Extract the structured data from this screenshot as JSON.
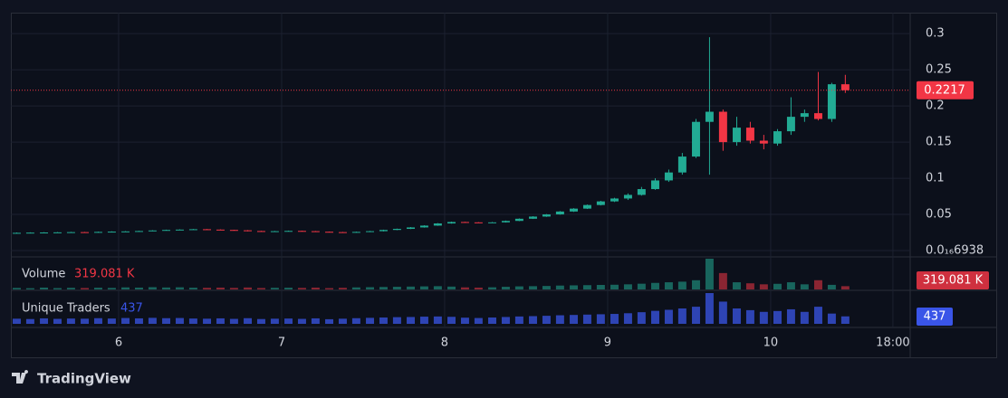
{
  "chart_data": {
    "type": "candlestick",
    "x": [
      5.375,
      5.458,
      5.542,
      5.625,
      5.708,
      5.792,
      5.875,
      5.958,
      6.042,
      6.125,
      6.208,
      6.292,
      6.375,
      6.458,
      6.542,
      6.625,
      6.708,
      6.792,
      6.875,
      6.958,
      7.042,
      7.125,
      7.208,
      7.292,
      7.375,
      7.458,
      7.542,
      7.625,
      7.708,
      7.792,
      7.875,
      7.958,
      8.042,
      8.125,
      8.208,
      8.292,
      8.375,
      8.458,
      8.542,
      8.625,
      8.708,
      8.792,
      8.875,
      8.958,
      9.042,
      9.125,
      9.208,
      9.292,
      9.375,
      9.458,
      9.542,
      9.625,
      9.708,
      9.792,
      9.875,
      9.958,
      10.042,
      10.125,
      10.208,
      10.292,
      10.375,
      10.458
    ],
    "open": [
      0.0243,
      0.0245,
      0.0248,
      0.025,
      0.0252,
      0.0255,
      0.025,
      0.0258,
      0.0262,
      0.0265,
      0.027,
      0.0278,
      0.0285,
      0.029,
      0.0295,
      0.029,
      0.0285,
      0.028,
      0.027,
      0.0265,
      0.0268,
      0.0272,
      0.0268,
      0.026,
      0.0255,
      0.0252,
      0.0258,
      0.0268,
      0.0285,
      0.03,
      0.032,
      0.0345,
      0.0375,
      0.0395,
      0.039,
      0.0385,
      0.039,
      0.041,
      0.044,
      0.047,
      0.05,
      0.054,
      0.058,
      0.063,
      0.068,
      0.072,
      0.077,
      0.085,
      0.097,
      0.108,
      0.13,
      0.178,
      0.192,
      0.15,
      0.17,
      0.152,
      0.148,
      0.165,
      0.185,
      0.19,
      0.182,
      0.23
    ],
    "high": [
      0.025,
      0.0252,
      0.0254,
      0.0256,
      0.0259,
      0.0258,
      0.0262,
      0.0266,
      0.0269,
      0.0274,
      0.0282,
      0.0289,
      0.0294,
      0.0299,
      0.0298,
      0.0293,
      0.0288,
      0.0283,
      0.0273,
      0.0272,
      0.0276,
      0.0275,
      0.0271,
      0.0263,
      0.0258,
      0.0262,
      0.0272,
      0.0289,
      0.0304,
      0.0325,
      0.035,
      0.038,
      0.04,
      0.0398,
      0.0393,
      0.0395,
      0.0415,
      0.0445,
      0.0475,
      0.0505,
      0.0546,
      0.0586,
      0.0637,
      0.0688,
      0.073,
      0.079,
      0.088,
      0.1,
      0.112,
      0.135,
      0.182,
      0.295,
      0.195,
      0.185,
      0.178,
      0.16,
      0.168,
      0.212,
      0.195,
      0.247,
      0.232,
      0.243
    ],
    "low": [
      0.024,
      0.0242,
      0.0245,
      0.0247,
      0.0249,
      0.0246,
      0.0248,
      0.0255,
      0.0259,
      0.0262,
      0.0267,
      0.0275,
      0.0282,
      0.0287,
      0.0286,
      0.0281,
      0.0276,
      0.0266,
      0.0261,
      0.0262,
      0.0265,
      0.0264,
      0.0256,
      0.0251,
      0.0248,
      0.0249,
      0.0255,
      0.0265,
      0.0282,
      0.0297,
      0.0317,
      0.0342,
      0.0372,
      0.0386,
      0.0381,
      0.0382,
      0.0387,
      0.0407,
      0.0437,
      0.0466,
      0.0496,
      0.0535,
      0.0575,
      0.0624,
      0.0672,
      0.07,
      0.076,
      0.084,
      0.095,
      0.105,
      0.128,
      0.105,
      0.138,
      0.145,
      0.148,
      0.14,
      0.145,
      0.16,
      0.178,
      0.18,
      0.178,
      0.218
    ],
    "close": [
      0.0245,
      0.0248,
      0.025,
      0.0252,
      0.0255,
      0.025,
      0.0258,
      0.0262,
      0.0265,
      0.027,
      0.0278,
      0.0285,
      0.029,
      0.0295,
      0.029,
      0.0285,
      0.028,
      0.027,
      0.0265,
      0.0268,
      0.0272,
      0.0268,
      0.026,
      0.0255,
      0.0252,
      0.0258,
      0.0268,
      0.0285,
      0.03,
      0.032,
      0.0345,
      0.0375,
      0.0395,
      0.039,
      0.0385,
      0.039,
      0.041,
      0.044,
      0.047,
      0.05,
      0.054,
      0.058,
      0.063,
      0.068,
      0.072,
      0.077,
      0.085,
      0.097,
      0.108,
      0.13,
      0.178,
      0.192,
      0.15,
      0.17,
      0.152,
      0.148,
      0.165,
      0.185,
      0.19,
      0.182,
      0.23,
      0.2217
    ],
    "up_color": "#22ab94",
    "down_color": "#f23645",
    "volume": {
      "name": "Volume",
      "values": [
        150,
        120,
        180,
        130,
        160,
        140,
        170,
        150,
        200,
        180,
        220,
        190,
        210,
        170,
        160,
        180,
        150,
        190,
        140,
        160,
        170,
        150,
        180,
        130,
        160,
        200,
        220,
        240,
        260,
        280,
        300,
        320,
        280,
        200,
        180,
        210,
        260,
        300,
        320,
        340,
        380,
        400,
        420,
        440,
        460,
        500,
        560,
        640,
        700,
        760,
        900,
        3000,
        1600,
        700,
        600,
        500,
        550,
        700,
        500,
        900,
        450,
        319.081
      ],
      "value_labels": [
        null,
        null,
        null,
        null,
        null,
        null,
        null,
        null,
        null,
        null,
        null,
        null,
        null,
        null,
        null,
        null,
        null,
        null,
        null,
        null,
        null,
        null,
        null,
        null,
        null,
        null,
        null,
        null,
        null,
        null,
        null,
        null,
        null,
        null,
        null,
        null,
        null,
        null,
        null,
        null,
        null,
        null,
        null,
        null,
        null,
        null,
        null,
        null,
        null,
        null,
        null,
        null,
        null,
        null,
        null,
        null,
        null,
        null,
        null,
        null,
        null,
        "319.081 K"
      ]
    },
    "traders": {
      "name": "Unique Traders",
      "color": "#3a55e8",
      "values": [
        300,
        280,
        320,
        290,
        310,
        300,
        330,
        310,
        340,
        320,
        350,
        330,
        340,
        310,
        300,
        320,
        290,
        330,
        280,
        300,
        310,
        290,
        320,
        270,
        300,
        330,
        350,
        370,
        390,
        400,
        420,
        430,
        410,
        360,
        340,
        370,
        400,
        430,
        450,
        470,
        500,
        520,
        540,
        560,
        580,
        620,
        680,
        760,
        820,
        900,
        1000,
        1800,
        1300,
        900,
        800,
        700,
        750,
        850,
        700,
        1000,
        600,
        437
      ]
    },
    "xlim": [
      5.339,
      10.856
    ],
    "xticks": [
      6,
      7,
      8,
      9,
      10,
      {
        "value": 10.75,
        "label": "18:00"
      }
    ],
    "ylim": [
      -0.0075,
      0.329
    ],
    "yticks": [
      {
        "value": 0,
        "label": "0.0₁₆6938"
      },
      0.05,
      0.1,
      0.15,
      0.2,
      0.25,
      0.3
    ],
    "grid": true,
    "watermark": "TradingView"
  }
}
